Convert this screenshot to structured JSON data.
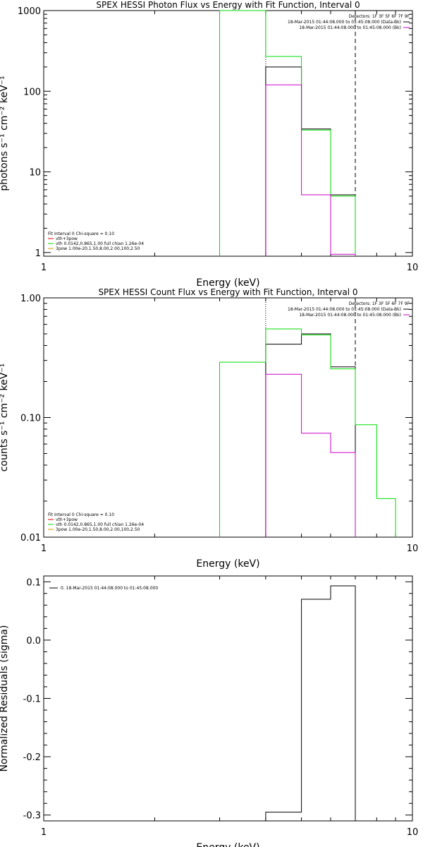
{
  "colors": {
    "black": "#000000",
    "green": "#00dd00",
    "magenta": "#cc00cc",
    "red": "#dd0000",
    "orange": "#dd9900"
  },
  "chart_data": [
    {
      "type": "line",
      "step": true,
      "title": "SPEX HESSI Photon Flux vs Energy with Fit Function, Interval 0",
      "xlabel": "Energy (keV)",
      "ylabel": "photons s⁻¹ cm⁻² keV⁻¹",
      "xscale": "log",
      "yscale": "log",
      "xlim": [
        1,
        10
      ],
      "ylim": [
        0.9,
        1000
      ],
      "xticks": [
        {
          "v": 1,
          "label": "1"
        },
        {
          "v": 10,
          "label": "10"
        }
      ],
      "yticks": [
        {
          "v": 1,
          "label": "1"
        },
        {
          "v": 10,
          "label": "10"
        },
        {
          "v": 100,
          "label": "100"
        },
        {
          "v": 1000,
          "label": "1000"
        }
      ],
      "vlines": [
        {
          "x": 4,
          "style": "dotted"
        },
        {
          "x": 7,
          "style": "dashed"
        }
      ],
      "legend_top": {
        "header": "Detectors: 1F 3F 5F 6F 7F 9F",
        "entries": [
          {
            "label": "18-Mar-2015 01:44:08.000 to 01:45:08.000 (Data-Bk)",
            "color": "#000000"
          },
          {
            "label": "18-Mar-2015 01:44:08.000 to 01:45:08.000 (Bk)",
            "color": "#cc00cc"
          }
        ]
      },
      "legend_bottom": {
        "header": "Fit Interval 0   Chi-square = 0.10",
        "entries": [
          {
            "label": "vth+3pow",
            "color": "#dd0000"
          },
          {
            "label": "vth 0.0142,0.865,1.00  full chian 1.26e-04",
            "color": "#00dd00"
          },
          {
            "label": "3pow 1.00e-20,1.50,8.00,2.00,100,2.50",
            "color": "#dd9900"
          }
        ]
      },
      "series": [
        {
          "name": "Data-Bk",
          "color": "#000000",
          "edges": [
            4,
            5,
            6,
            7
          ],
          "values": [
            200,
            34,
            5.2
          ]
        },
        {
          "name": "vth+3pow",
          "color": "#00dd00",
          "edges": [
            3,
            4,
            5,
            6,
            7
          ],
          "values": [
            1000,
            270,
            33,
            5
          ]
        },
        {
          "name": "Bk",
          "color": "#cc00cc",
          "edges": [
            4,
            5,
            6,
            7
          ],
          "values": [
            120,
            5.2,
            0.95
          ]
        }
      ]
    },
    {
      "type": "line",
      "step": true,
      "title": "SPEX HESSI Count Flux vs Energy with Fit Function, Interval 0",
      "xlabel": "Energy (keV)",
      "ylabel": "counts s⁻¹ cm⁻² keV⁻¹",
      "xscale": "log",
      "yscale": "log",
      "xlim": [
        1,
        10
      ],
      "ylim": [
        0.01,
        1
      ],
      "xticks": [
        {
          "v": 1,
          "label": "1"
        },
        {
          "v": 10,
          "label": "10"
        }
      ],
      "yticks": [
        {
          "v": 0.01,
          "label": "0.01"
        },
        {
          "v": 0.1,
          "label": "0.10"
        },
        {
          "v": 1,
          "label": "1.00"
        }
      ],
      "vlines": [
        {
          "x": 4,
          "style": "dotted"
        },
        {
          "x": 7,
          "style": "dashed"
        }
      ],
      "legend_top": {
        "header": "Detectors: 1F 3F 5F 6F 7F 9F",
        "entries": [
          {
            "label": "18-Mar-2015 01:44:08.000 to 01:45:08.000 (Data-Bk)",
            "color": "#000000"
          },
          {
            "label": "18-Mar-2015 01:44:08.000 to 01:45:08.000 (Bk)",
            "color": "#cc00cc"
          }
        ]
      },
      "legend_bottom": {
        "header": "Fit Interval 0   Chi-square = 0.10",
        "entries": [
          {
            "label": "vth+3pow",
            "color": "#dd0000"
          },
          {
            "label": "vth 0.0142,0.865,1.00  full chian 1.26e-04",
            "color": "#00dd00"
          },
          {
            "label": "3pow 1.00e-20,1.50,8.00,2.00,100,2.50",
            "color": "#dd9900"
          }
        ]
      },
      "series": [
        {
          "name": "Data-Bk",
          "color": "#000000",
          "edges": [
            4,
            5,
            6,
            7
          ],
          "values": [
            0.41,
            0.5,
            0.265
          ]
        },
        {
          "name": "vth+3pow",
          "color": "#00dd00",
          "edges": [
            3,
            4,
            5,
            6,
            7,
            8,
            9
          ],
          "values": [
            0.29,
            0.55,
            0.49,
            0.255,
            0.087,
            0.021
          ]
        },
        {
          "name": "Bk",
          "color": "#cc00cc",
          "edges": [
            4,
            5,
            6,
            7
          ],
          "values": [
            0.23,
            0.074,
            0.051
          ]
        }
      ]
    },
    {
      "type": "line",
      "step": true,
      "title": "",
      "xlabel": "Energy (keV)",
      "ylabel": "Normalized Residuals (sigma)",
      "xscale": "log",
      "yscale": "linear",
      "xlim": [
        1,
        10
      ],
      "ylim": [
        -0.31,
        0.11
      ],
      "xticks": [
        {
          "v": 1,
          "label": "1"
        },
        {
          "v": 10,
          "label": "10"
        }
      ],
      "yticks": [
        {
          "v": -0.3,
          "label": "-0.3"
        },
        {
          "v": -0.2,
          "label": "-0.2"
        },
        {
          "v": -0.1,
          "label": "-0.1"
        },
        {
          "v": 0,
          "label": "0.0"
        },
        {
          "v": 0.1,
          "label": "0.1"
        }
      ],
      "vlines": [],
      "legend_top": {
        "header": "",
        "entries": [
          {
            "label": "0. 18-Mar-2015 01:44:08.000 to 01:45:08.000",
            "color": "#000000"
          }
        ]
      },
      "legend_bottom": {
        "header": "",
        "entries": []
      },
      "series": [
        {
          "name": "0. 18-Mar-2015 01:44:08.000 to 01:45:08.000",
          "color": "#000000",
          "edges": [
            4,
            5,
            6,
            7
          ],
          "values": [
            -0.295,
            0.07,
            0.093
          ]
        }
      ]
    }
  ]
}
